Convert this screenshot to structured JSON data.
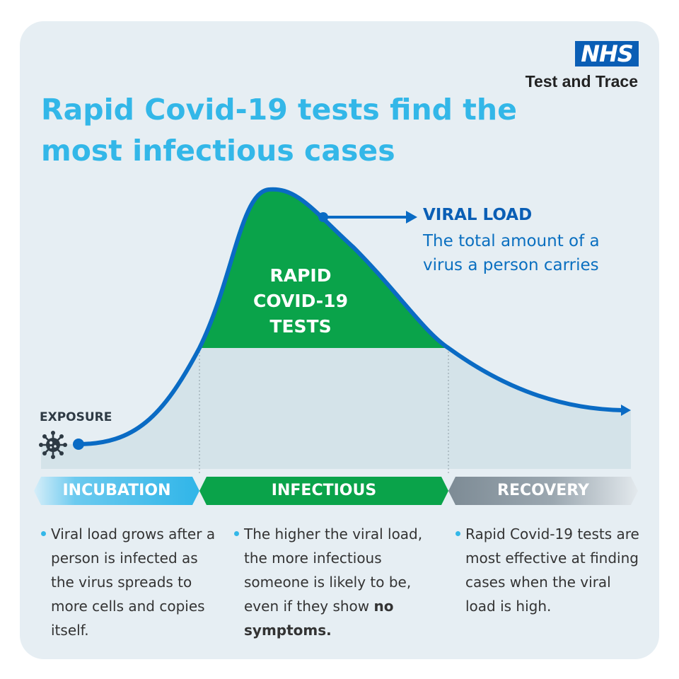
{
  "logo": {
    "brand": "NHS",
    "subtitle": "Test and Trace"
  },
  "title": "Rapid Covid-19 tests find the most infectious cases",
  "rapid_label": "RAPID COVID-19 TESTS",
  "viral_load": {
    "title": "VIRAL LOAD",
    "description": "The total amount of a virus a person carries"
  },
  "exposure_label": "EXPOSURE",
  "phases": [
    {
      "label": "INCUBATION"
    },
    {
      "label": "INFECTIOUS"
    },
    {
      "label": "RECOVERY"
    }
  ],
  "columns": [
    {
      "text": "Viral load grows after a person is infected as the virus spreads to more cells and copies itself."
    },
    {
      "text": "The higher the viral load, the more infectious someone is likely to be, even if they show",
      "emphasis": "no symptoms."
    },
    {
      "text": "Rapid Covid-19 tests are most effective at finding cases when the viral load is high."
    }
  ],
  "colors": {
    "title": "#33b7e8",
    "curve": "#0a6bc4",
    "rapid_fill": "#0aa34a",
    "area_fill": "#d4e3e9",
    "card": "#e6eef3",
    "nhs_blue": "#0a5eb5"
  },
  "icons": {
    "virus": "virus-icon",
    "exposure_point": "dot-marker",
    "arrow": "arrow-right-icon"
  }
}
